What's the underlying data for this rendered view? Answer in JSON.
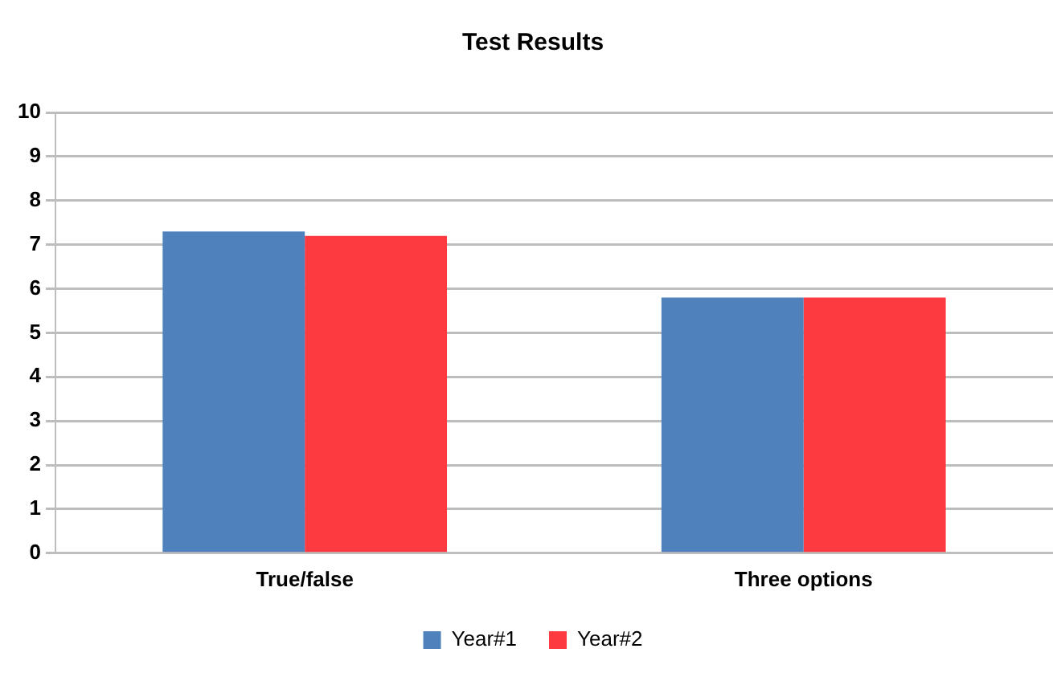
{
  "chart_data": {
    "type": "bar",
    "title": "Test Results",
    "categories": [
      "True/false",
      "Three options"
    ],
    "series": [
      {
        "name": "Year#1",
        "color": "#4f81bd",
        "values": [
          7.3,
          5.8
        ]
      },
      {
        "name": "Year#2",
        "color": "#fc3a3f",
        "values": [
          7.2,
          5.8
        ]
      }
    ],
    "ylim": [
      0,
      10
    ],
    "yticks": [
      0,
      1,
      2,
      3,
      4,
      5,
      6,
      7,
      8,
      9,
      10
    ],
    "grid": "y",
    "legend": "bottom"
  }
}
